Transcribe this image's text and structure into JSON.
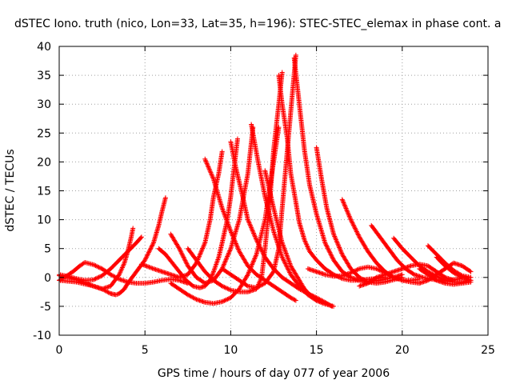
{
  "chart_data": {
    "type": "scatter",
    "title": "dSTEC Iono. truth (nico, Lon=33, Lat=35, h=196): STEC-STEC_elemax in phase cont. a",
    "xlabel": "GPS time / hours of day 077 of year 2006",
    "ylabel": "dSTEC  / TECUs",
    "xlim": [
      0,
      25
    ],
    "ylim": [
      -10,
      40
    ],
    "xticks": [
      0,
      5,
      10,
      15,
      20,
      25
    ],
    "yticks": [
      -10,
      -5,
      0,
      5,
      10,
      15,
      20,
      25,
      30,
      35,
      40
    ],
    "xtick_labels": [
      "0",
      "5",
      "10",
      "15",
      "20",
      "25"
    ],
    "ytick_labels": [
      "-10",
      "-5",
      "0",
      "5",
      "10",
      "15",
      "20",
      "25",
      "30",
      "35",
      "40"
    ],
    "grid": true,
    "marker": "plus",
    "color": "#ff0000",
    "series": [
      {
        "x": [
          0.0,
          0.5,
          1.0,
          1.5,
          2.0,
          2.5,
          3.0,
          3.5,
          3.8,
          4.0,
          4.2,
          4.3
        ],
        "y": [
          0.3,
          0.0,
          -0.4,
          -0.9,
          -1.5,
          -2.0,
          -1.5,
          0.5,
          2.5,
          4.5,
          7.0,
          8.5
        ]
      },
      {
        "x": [
          0.0,
          0.5,
          1.0,
          1.5,
          2.0,
          2.5,
          3.0,
          3.5,
          4.0,
          4.5,
          4.8
        ],
        "y": [
          0.5,
          0.2,
          -0.2,
          -0.5,
          -0.4,
          0.3,
          1.5,
          3.0,
          4.5,
          6.0,
          7.0
        ]
      },
      {
        "x": [
          0.0,
          0.4,
          0.8,
          1.2,
          1.5,
          2.0,
          2.5,
          3.0,
          3.5,
          4.0,
          4.5,
          5.0,
          5.5,
          6.0,
          6.5,
          7.0,
          7.5
        ],
        "y": [
          -0.5,
          0.2,
          1.0,
          2.0,
          2.6,
          2.2,
          1.5,
          0.5,
          -0.3,
          -0.8,
          -1.0,
          -1.0,
          -0.8,
          -0.5,
          -0.3,
          -0.5,
          -1.0
        ]
      },
      {
        "x": [
          0.0,
          1.0,
          2.0,
          2.5,
          3.0,
          3.3,
          3.5,
          3.8,
          4.0,
          4.5,
          5.0,
          5.5,
          5.8,
          6.0,
          6.2
        ],
        "y": [
          -0.5,
          -0.8,
          -1.5,
          -2.0,
          -2.8,
          -3.0,
          -2.8,
          -2.0,
          -1.0,
          1.0,
          3.0,
          6.0,
          9.0,
          11.5,
          13.8
        ]
      },
      {
        "x": [
          4.8,
          5.5,
          6.0,
          6.5,
          7.0,
          7.5,
          8.0,
          8.5,
          8.8,
          9.0,
          9.3,
          9.5
        ],
        "y": [
          2.3,
          1.5,
          1.0,
          0.5,
          0.0,
          0.5,
          2.5,
          6.0,
          10.0,
          14.0,
          18.0,
          21.8
        ]
      },
      {
        "x": [
          5.8,
          6.2,
          6.6,
          7.0,
          7.4,
          7.8,
          8.2,
          8.5,
          8.8,
          9.0,
          9.3,
          9.5,
          9.8,
          10.0,
          10.2,
          10.4
        ],
        "y": [
          5.0,
          4.0,
          2.5,
          1.0,
          -0.5,
          -1.5,
          -1.8,
          -1.5,
          -0.5,
          1.0,
          3.5,
          6.0,
          10.0,
          14.0,
          19.0,
          24.0
        ]
      },
      {
        "x": [
          6.5,
          7.0,
          7.5,
          8.0,
          8.5,
          9.0,
          9.5,
          10.0,
          10.5,
          11.0,
          11.3
        ],
        "y": [
          7.5,
          5.0,
          2.0,
          0.0,
          -1.0,
          -0.5,
          1.5,
          5.0,
          10.0,
          18.0,
          26.0
        ]
      },
      {
        "x": [
          8.5,
          9.0,
          9.5,
          10.0,
          10.5,
          11.0,
          11.5,
          12.0,
          12.5,
          13.0,
          13.5,
          13.8
        ],
        "y": [
          20.5,
          17.0,
          12.0,
          8.0,
          4.5,
          2.0,
          0.5,
          -0.5,
          -1.5,
          -2.5,
          -3.5,
          -4.0
        ]
      },
      {
        "x": [
          10.0,
          10.3,
          10.7,
          11.0,
          11.5,
          12.0,
          12.5,
          13.0,
          13.5,
          14.0,
          14.5,
          15.0,
          15.5,
          15.9
        ],
        "y": [
          23.5,
          19.0,
          14.0,
          10.0,
          6.5,
          3.5,
          1.5,
          0.0,
          -1.0,
          -2.0,
          -2.8,
          -3.5,
          -4.3,
          -5.0
        ]
      },
      {
        "x": [
          6.5,
          7.0,
          7.5,
          8.0,
          8.5,
          9.0,
          9.5,
          10.0,
          10.5,
          11.0,
          11.5,
          12.0,
          12.5,
          12.8
        ],
        "y": [
          -1.0,
          -2.0,
          -3.0,
          -3.8,
          -4.3,
          -4.5,
          -4.2,
          -3.5,
          -2.0,
          0.5,
          4.0,
          10.0,
          20.0,
          26.0
        ]
      },
      {
        "x": [
          7.5,
          8.0,
          8.5,
          9.0,
          9.5,
          10.0,
          10.5,
          11.0,
          11.5,
          11.8,
          12.0,
          12.3,
          12.5,
          12.8,
          13.0
        ],
        "y": [
          5.0,
          3.0,
          1.0,
          -0.5,
          -1.5,
          -2.2,
          -2.5,
          -2.5,
          -2.0,
          0.0,
          5.0,
          14.0,
          22.0,
          30.0,
          35.5
        ]
      },
      {
        "x": [
          9.5,
          10.0,
          10.5,
          11.0,
          11.5,
          12.0,
          12.5,
          12.8,
          13.0,
          13.3,
          13.6,
          13.8
        ],
        "y": [
          1.5,
          0.5,
          -0.5,
          -1.5,
          -1.8,
          -1.0,
          1.0,
          5.0,
          12.0,
          22.0,
          32.0,
          38.5
        ]
      },
      {
        "x": [
          12.8,
          13.0,
          13.3,
          13.5,
          13.8,
          14.0,
          14.3,
          14.6,
          15.0,
          15.5,
          16.0,
          16.5,
          17.0,
          17.5,
          18.0,
          18.5,
          19.0
        ],
        "y": [
          35.0,
          30.0,
          24.0,
          18.0,
          13.0,
          9.5,
          6.5,
          4.5,
          3.0,
          1.5,
          0.5,
          -0.2,
          -0.5,
          -0.5,
          -0.3,
          -0.2,
          0.0
        ]
      },
      {
        "x": [
          13.7,
          14.0,
          14.3,
          14.6,
          15.0,
          15.5,
          16.0,
          16.5,
          17.0,
          17.5,
          18.0,
          18.5,
          19.0,
          19.5,
          20.0
        ],
        "y": [
          38.0,
          30.0,
          22.0,
          16.0,
          11.0,
          6.0,
          3.0,
          1.0,
          0.0,
          -0.5,
          -0.8,
          -0.6,
          -0.3,
          0.0,
          0.5
        ]
      },
      {
        "x": [
          11.2,
          11.6,
          12.0,
          12.5,
          13.0,
          13.5,
          14.0,
          14.5,
          15.0,
          15.5,
          16.0
        ],
        "y": [
          26.5,
          20.0,
          14.0,
          8.0,
          3.5,
          0.5,
          -1.5,
          -3.0,
          -4.0,
          -4.6,
          -5.0
        ]
      },
      {
        "x": [
          12.0,
          12.5,
          13.0,
          13.5,
          14.0,
          14.3,
          14.6,
          15.0,
          15.3
        ],
        "y": [
          18.5,
          12.0,
          6.0,
          2.0,
          -0.5,
          -2.0,
          -3.0,
          -3.8,
          -4.2
        ]
      },
      {
        "x": [
          15.0,
          15.3,
          15.6,
          16.0,
          16.5,
          17.0,
          17.5,
          18.0,
          18.5,
          19.0,
          19.5,
          20.0
        ],
        "y": [
          22.5,
          17.0,
          12.0,
          7.5,
          4.0,
          1.5,
          0.0,
          -0.8,
          -1.0,
          -0.8,
          -0.4,
          0.0
        ]
      },
      {
        "x": [
          16.5,
          17.0,
          17.5,
          18.0,
          18.5,
          19.0,
          19.5,
          20.0,
          20.5,
          21.0
        ],
        "y": [
          13.5,
          10.0,
          7.0,
          4.5,
          2.5,
          1.0,
          0.0,
          -0.5,
          -0.5,
          -0.3
        ]
      },
      {
        "x": [
          14.5,
          15.0,
          15.5,
          16.0,
          16.5,
          17.0,
          17.5,
          18.0,
          18.5,
          19.0,
          19.5
        ],
        "y": [
          1.5,
          1.0,
          0.5,
          0.2,
          0.3,
          0.8,
          1.5,
          1.8,
          1.5,
          0.8,
          0.0
        ]
      },
      {
        "x": [
          18.2,
          18.7,
          19.2,
          19.7,
          20.2,
          20.7,
          21.2,
          21.7,
          22.2,
          22.7,
          23.2,
          23.7
        ],
        "y": [
          9.0,
          7.0,
          5.0,
          3.0,
          1.5,
          0.5,
          0.0,
          -0.3,
          -0.5,
          -0.5,
          -0.3,
          0.0
        ]
      },
      {
        "x": [
          19.5,
          20.0,
          20.5,
          21.0,
          21.5,
          22.0,
          22.5,
          23.0,
          23.5,
          24.0
        ],
        "y": [
          6.8,
          5.0,
          3.5,
          2.0,
          1.0,
          0.2,
          -0.5,
          -0.8,
          -0.8,
          -0.5
        ]
      },
      {
        "x": [
          17.5,
          18.0,
          18.5,
          19.0,
          19.5,
          20.0,
          20.5,
          21.0,
          21.5,
          22.0,
          22.5,
          23.0
        ],
        "y": [
          -1.5,
          -1.0,
          0.0,
          0.5,
          1.0,
          1.5,
          2.0,
          2.3,
          2.0,
          1.0,
          0.0,
          -0.5
        ]
      },
      {
        "x": [
          21.5,
          22.0,
          22.5,
          23.0,
          23.5,
          24.0
        ],
        "y": [
          5.5,
          4.0,
          2.5,
          1.2,
          0.3,
          0.0
        ]
      },
      {
        "x": [
          22.0,
          22.5,
          23.0,
          23.5,
          24.0
        ],
        "y": [
          3.5,
          2.0,
          0.8,
          0.0,
          -0.5
        ]
      },
      {
        "x": [
          20.0,
          20.5,
          21.0,
          21.5,
          22.0,
          22.5,
          23.0,
          23.5,
          24.0
        ],
        "y": [
          -0.5,
          -0.8,
          -1.0,
          -0.5,
          0.5,
          1.5,
          2.5,
          2.0,
          1.0
        ]
      },
      {
        "x": [
          21.0,
          21.5,
          22.0,
          22.5,
          23.0,
          23.5,
          24.0
        ],
        "y": [
          1.5,
          0.5,
          -0.5,
          -1.0,
          -1.2,
          -1.0,
          -0.8
        ]
      }
    ]
  }
}
